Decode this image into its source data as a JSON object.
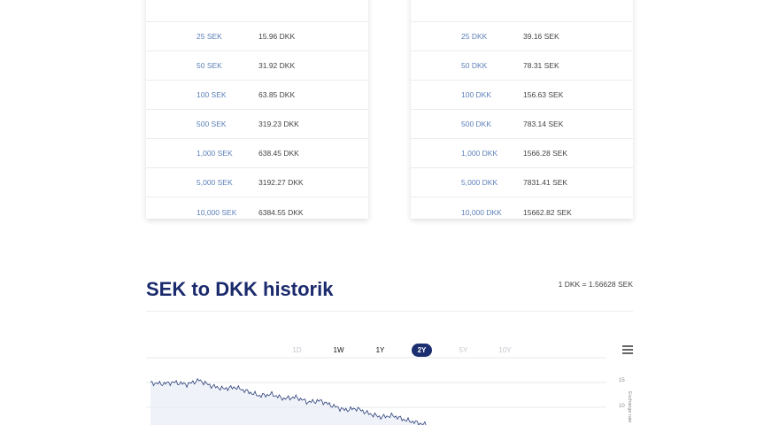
{
  "left_table": {
    "rows": [
      {
        "amount": "25 SEK",
        "result": "15.96 DKK"
      },
      {
        "amount": "50 SEK",
        "result": "31.92 DKK"
      },
      {
        "amount": "100 SEK",
        "result": "63.85 DKK"
      },
      {
        "amount": "500 SEK",
        "result": "319.23 DKK"
      },
      {
        "amount": "1,000 SEK",
        "result": "638.45 DKK"
      },
      {
        "amount": "5,000 SEK",
        "result": "3192.27 DKK"
      },
      {
        "amount": "10,000 SEK",
        "result": "6384.55 DKK"
      }
    ]
  },
  "right_table": {
    "rows": [
      {
        "amount": "25 DKK",
        "result": "39.16 SEK"
      },
      {
        "amount": "50 DKK",
        "result": "78.31 SEK"
      },
      {
        "amount": "100 DKK",
        "result": "156.63 SEK"
      },
      {
        "amount": "500 DKK",
        "result": "783.14 SEK"
      },
      {
        "amount": "1,000 DKK",
        "result": "1566.28 SEK"
      },
      {
        "amount": "5,000 DKK",
        "result": "7831.41 SEK"
      },
      {
        "amount": "10,000 DKK",
        "result": "15662.82 SEK"
      }
    ]
  },
  "history": {
    "title": "SEK to DKK historik",
    "rate": "1 DKK = 1.56628 SEK"
  },
  "range_buttons": [
    {
      "label": "1D",
      "state": "disabled"
    },
    {
      "label": "1W",
      "state": "normal"
    },
    {
      "label": "1Y",
      "state": "normal"
    },
    {
      "label": "2Y",
      "state": "active"
    },
    {
      "label": "5Y",
      "state": "disabled"
    },
    {
      "label": "10Y",
      "state": "disabled"
    }
  ],
  "chart_data": {
    "type": "line",
    "series": [
      {
        "values": [
          0.668,
          0.667,
          0.669,
          0.666,
          0.672,
          0.664,
          0.66,
          0.662,
          0.656,
          0.65,
          0.652,
          0.646,
          0.648,
          0.641,
          0.643,
          0.636,
          0.63,
          0.632,
          0.625,
          0.62,
          0.622,
          0.616,
          0.612,
          0.608
        ]
      }
    ],
    "y_ticks": [
      "15",
      "10"
    ],
    "ylabel": "Exchange rate",
    "colors": {
      "line": "#2b3f7a",
      "area": "#e8ecf7"
    }
  },
  "colors": {
    "accent": "#1b2e6f",
    "link": "#5b7fb9"
  }
}
